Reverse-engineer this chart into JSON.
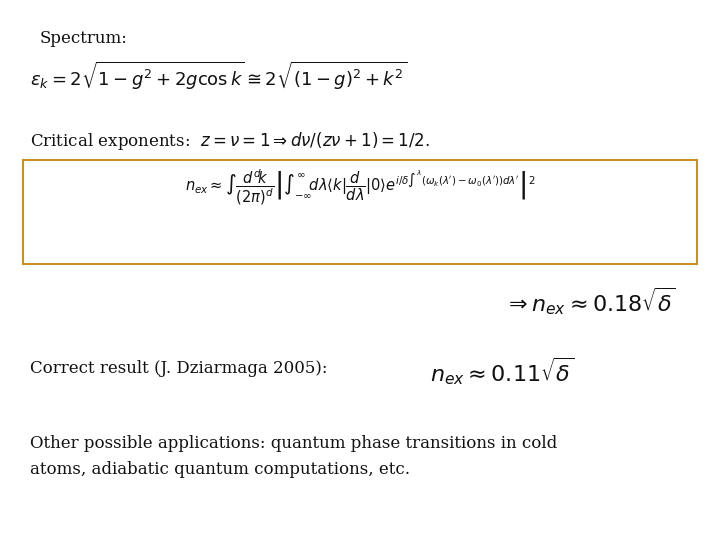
{
  "bg_color": "#ffffff",
  "text_color": "#111111",
  "spectrum_label": "Spectrum:",
  "spectrum_formula": "$\\varepsilon_k = 2\\sqrt{1-g^2+2g\\cos k} \\cong 2\\sqrt{(1-g)^2+k^2}$",
  "critical_text": "Critical exponents:  $z=\\nu =1 \\Rightarrow d\\nu/(z\\nu +1)=1/2$.",
  "boxed_formula": "$n_{ex} \\approx \\int \\dfrac{d^d\\!k}{(2\\pi)^d} \\left|\\int_{-\\infty}^{\\infty}\\!d\\lambda\\langle k|\\dfrac{d}{d\\lambda}|0\\rangle e^{i/\\delta\\int^\\lambda(\\omega_k(\\lambda')-\\omega_0(\\lambda'))d\\lambda'}\\right|^2$",
  "result_formula": "$\\Rightarrow n_{ex} \\approx 0.18\\sqrt{\\delta}$",
  "correct_text": "Correct result (J. Dziarmaga 2005):",
  "correct_formula": "$n_{ex} \\approx 0.11\\sqrt{\\delta}$",
  "other_text": "Other possible applications: quantum phase transitions in cold\natoms, adiabatic quantum computations, etc.",
  "box_color": "#c8902a",
  "figsize": [
    7.2,
    5.4
  ],
  "dpi": 100
}
